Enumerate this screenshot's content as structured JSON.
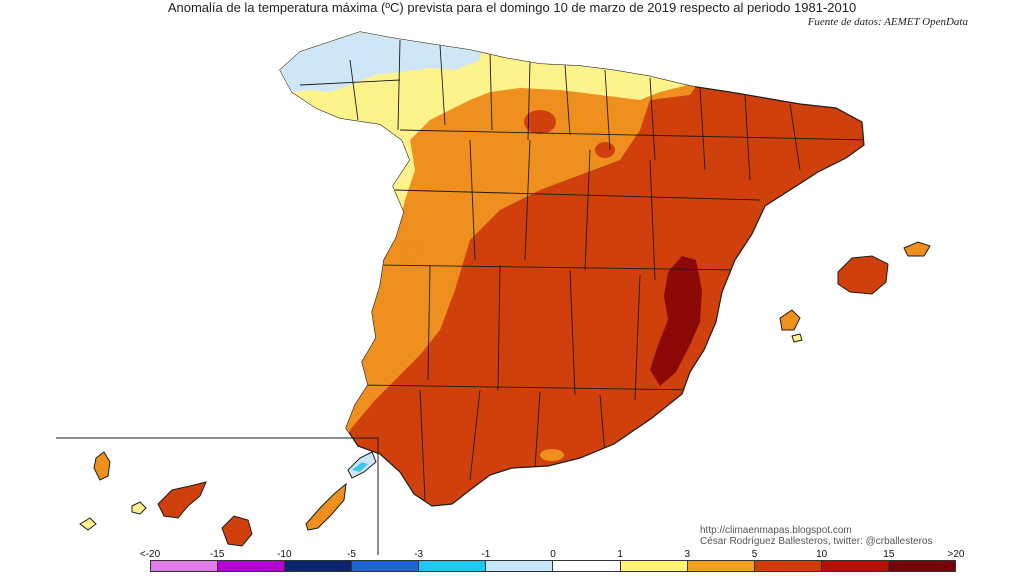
{
  "title": "Anomalía de la temperatura máxima (ºC) prevista para el domingo 10 de marzo de 2019 respecto al periodo 1981-2010",
  "source": "Fuente de datos: AEMET OpenData",
  "credits": {
    "blog": "http://climaenmapas.blogspot.com",
    "author": "César Rodríguez Ballesteros, twitter: @crballesteros"
  },
  "legend": {
    "ticks": [
      "<-20",
      "-15",
      "-10",
      "-5",
      "-3",
      "-1",
      "0",
      "1",
      "3",
      "5",
      "10",
      "15",
      ">20"
    ],
    "colors": [
      "#e07be8",
      "#b400d2",
      "#0a2470",
      "#1e64d2",
      "#1ec8f0",
      "#c8e6fa",
      "#ffffff",
      "#fff56e",
      "#f5a01e",
      "#d23c00",
      "#b40f00",
      "#78000a"
    ]
  },
  "colors": {
    "very_hot": "#8b0a06",
    "hot": "#d0400c",
    "warm": "#ef8f1e",
    "mild": "#fdf38d",
    "cool": "#cfe6f7",
    "cold": "#3cc7ee",
    "outline": "#1c1c1c"
  }
}
